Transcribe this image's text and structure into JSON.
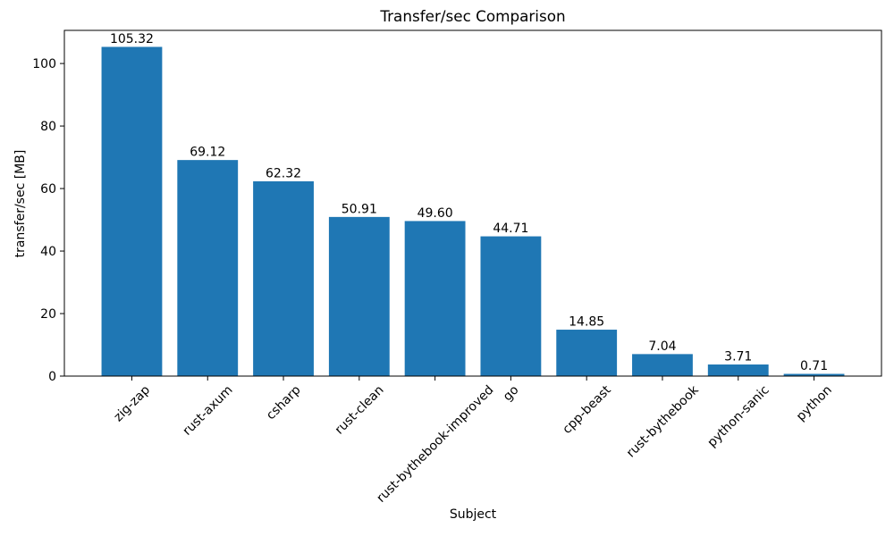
{
  "page": {
    "background": "#ffffff"
  },
  "chart_data": {
    "type": "bar",
    "title": "Transfer/sec Comparison",
    "xlabel": "Subject",
    "ylabel": "transfer/sec [MB]",
    "categories": [
      "zig-zap",
      "rust-axum",
      "csharp",
      "rust-clean",
      "rust-bythebook-improved",
      "go",
      "cpp-beast",
      "rust-bythebook",
      "python-sanic",
      "python"
    ],
    "values": [
      105.32,
      69.12,
      62.32,
      50.91,
      49.6,
      44.71,
      14.85,
      7.04,
      3.71,
      0.71
    ],
    "value_labels": [
      "105.32",
      "69.12",
      "62.32",
      "50.91",
      "49.60",
      "44.71",
      "14.85",
      "7.04",
      "3.71",
      "0.71"
    ],
    "yticks": [
      0,
      20,
      40,
      60,
      80,
      100
    ],
    "ylim": [
      0,
      110.6
    ],
    "bar_color": "#1f77b4",
    "text_color": "#000000",
    "spine_color": "#000000",
    "grid": false,
    "legend": "none",
    "x_tick_rotation_deg": 45
  }
}
